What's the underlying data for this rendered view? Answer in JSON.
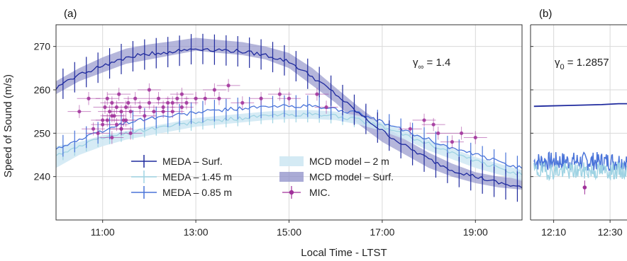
{
  "figure": {
    "xlabel": "Local Time - LTST",
    "ylabel": "Speed of Sound (m/s)"
  },
  "colors": {
    "meda_surf": "#1f2a9e",
    "meda_145": "#9fd3e3",
    "meda_085": "#4a74d9",
    "mcd_2m": "#cfe8f3",
    "mcd_surf": "#8e8fc8",
    "mic": "#a0309a"
  },
  "legend": [
    {
      "key": "meda_surf",
      "label": "MEDA – Surf.",
      "kind": "errline"
    },
    {
      "key": "meda_145",
      "label": "MEDA – 1.45 m",
      "kind": "errline"
    },
    {
      "key": "meda_085",
      "label": "MEDA – 0.85 m",
      "kind": "errline"
    },
    {
      "key": "mcd_2m",
      "label": "MCD model – 2 m",
      "kind": "band"
    },
    {
      "key": "mcd_surf",
      "label": "MCD model – Surf.",
      "kind": "band"
    },
    {
      "key": "mic",
      "label": "MIC.",
      "kind": "point"
    }
  ],
  "chart_data": [
    {
      "panel": "(a)",
      "type": "line",
      "xlim": [
        10.0,
        20.0
      ],
      "ylim": [
        230,
        275
      ],
      "xticks": [
        11,
        13,
        15,
        17,
        19
      ],
      "xtick_labels": [
        "11:00",
        "13:00",
        "15:00",
        "17:00",
        "19:00"
      ],
      "yticks": [
        240,
        250,
        260,
        270
      ],
      "ytick_labels": [
        "240",
        "250",
        "260",
        "270"
      ],
      "grid": true,
      "legend_position": "lower-center",
      "annotation": {
        "symbol": "γ",
        "subscript": "∞",
        "text": " = 1.4"
      },
      "series": [
        {
          "name": "MCD model – Surf.",
          "kind": "band",
          "x": [
            10.0,
            10.5,
            11.0,
            11.5,
            12.0,
            12.5,
            13.0,
            13.5,
            14.0,
            14.5,
            15.0,
            15.5,
            16.0,
            16.5,
            17.0,
            17.5,
            18.0,
            18.5,
            19.0,
            19.5,
            20.0
          ],
          "lower": [
            259,
            262,
            264,
            266,
            267,
            268,
            269,
            268.5,
            268,
            267,
            265,
            261,
            257,
            252,
            248,
            245,
            242,
            240,
            238.5,
            237.5,
            237
          ],
          "upper": [
            262,
            265,
            267.5,
            269.5,
            270.5,
            271.2,
            272,
            271.5,
            271,
            270,
            268.5,
            265,
            260.5,
            256,
            252,
            248.5,
            245.5,
            243,
            241,
            240,
            239.5
          ]
        },
        {
          "name": "MCD model – 2 m",
          "kind": "band",
          "x": [
            10.0,
            10.5,
            11.0,
            11.5,
            12.0,
            12.5,
            13.0,
            13.5,
            14.0,
            14.5,
            15.0,
            15.5,
            16.0,
            16.5,
            17.0,
            17.5,
            18.0,
            18.5,
            19.0,
            19.5,
            20.0
          ],
          "lower": [
            242,
            245,
            247,
            248.5,
            249.5,
            250.5,
            251.5,
            252,
            252.5,
            253,
            253.3,
            253.3,
            253,
            252,
            250.5,
            248.5,
            246,
            244,
            242,
            240.5,
            239
          ],
          "upper": [
            247,
            248,
            249.5,
            250.5,
            251.5,
            252.5,
            253.5,
            254,
            254.5,
            255,
            255.3,
            255.3,
            255,
            254,
            252.5,
            250.5,
            248.5,
            246.5,
            244.5,
            243,
            241.5
          ]
        },
        {
          "name": "MEDA – 1.45 m",
          "kind": "errline",
          "x": [
            10.0,
            10.5,
            11.0,
            11.5,
            12.0,
            12.5,
            13.0,
            13.5,
            14.0,
            14.5,
            15.0,
            15.5,
            16.0,
            16.5,
            17.0,
            17.5,
            18.0,
            18.5,
            19.0,
            19.5,
            20.0
          ],
          "y": [
            245,
            247,
            249,
            250,
            251,
            251.8,
            252.5,
            253,
            253.5,
            254,
            254.3,
            254.3,
            254,
            253,
            251.5,
            249.5,
            247.5,
            245.5,
            243.5,
            242,
            240.5
          ],
          "err": 1.8
        },
        {
          "name": "MEDA – 0.85 m",
          "kind": "errline",
          "x": [
            10.0,
            10.5,
            11.0,
            11.5,
            12.0,
            12.5,
            13.0,
            13.5,
            14.0,
            14.5,
            15.0,
            15.5,
            16.0,
            16.5,
            17.0,
            17.5,
            18.0,
            18.5,
            19.0,
            19.5,
            20.0
          ],
          "y": [
            246.5,
            248.5,
            250.5,
            252.5,
            253.5,
            254,
            254.8,
            255.3,
            255.8,
            256,
            256.3,
            256.2,
            255.5,
            254.5,
            252.5,
            250.5,
            248.5,
            246.5,
            245,
            243.5,
            242
          ],
          "err": 2.5
        },
        {
          "name": "MEDA – Surf.",
          "kind": "errline",
          "x": [
            10.0,
            10.5,
            11.0,
            11.5,
            12.0,
            12.5,
            13.0,
            13.5,
            14.0,
            14.5,
            15.0,
            15.5,
            16.0,
            16.5,
            17.0,
            17.5,
            18.0,
            18.5,
            19.0,
            19.5,
            20.0
          ],
          "y": [
            260.5,
            263.5,
            265.5,
            267.5,
            268.3,
            268.8,
            269.5,
            269.2,
            268.8,
            268,
            266.5,
            263,
            259,
            254.5,
            250.5,
            247,
            244,
            241.5,
            240,
            238.5,
            237.5
          ],
          "err": 3.5
        },
        {
          "name": "MIC.",
          "kind": "scatter",
          "x": [
            10.5,
            10.7,
            10.8,
            10.9,
            11.0,
            11.05,
            11.1,
            11.15,
            11.2,
            11.25,
            11.3,
            11.35,
            11.4,
            11.45,
            11.5,
            11.55,
            11.6,
            11.7,
            11.8,
            11.9,
            12.0,
            12.1,
            12.2,
            12.3,
            12.4,
            12.5,
            12.6,
            12.7,
            12.8,
            13.0,
            11.0,
            11.1,
            11.2,
            11.3,
            11.4,
            11.5,
            12.3,
            12.5,
            12.7,
            11.6,
            11.2,
            11.4,
            12.0,
            13.5,
            13.7,
            14.0,
            14.4,
            14.8,
            15.0,
            15.6,
            15.8,
            13.2,
            13.4,
            17.6,
            17.9,
            18.1,
            18.2,
            18.5,
            18.7,
            19.0
          ],
          "y": [
            255,
            258,
            251,
            250,
            253,
            256,
            258,
            255,
            257,
            254,
            256,
            259,
            255,
            253,
            256,
            257,
            255,
            258,
            256,
            254,
            257,
            255,
            258,
            256,
            257,
            255,
            258,
            256,
            257,
            258,
            252,
            253,
            254,
            252,
            251,
            253,
            255,
            257,
            259,
            250,
            249,
            251,
            260,
            258,
            261,
            257,
            258,
            259,
            258,
            259,
            256,
            258,
            260,
            251,
            253,
            252,
            250,
            248,
            250,
            249
          ],
          "xerr": 0.25,
          "yerr": 1.5
        }
      ]
    },
    {
      "panel": "(b)",
      "type": "line",
      "xlim": [
        12.03,
        12.6
      ],
      "ylim": [
        230,
        275
      ],
      "xticks": [
        12.1667,
        12.5
      ],
      "xtick_labels": [
        "12:10",
        "12:30"
      ],
      "yticks": [
        240,
        250,
        260,
        270
      ],
      "grid": true,
      "annotation": {
        "symbol": "γ",
        "subscript": "0",
        "text": " = 1.2857"
      },
      "series": [
        {
          "name": "MEDA – Surf.",
          "kind": "line",
          "x": [
            12.05,
            12.15,
            12.25,
            12.35,
            12.45,
            12.55,
            12.6
          ],
          "y": [
            256.2,
            256.3,
            256.4,
            256.5,
            256.6,
            256.8,
            256.8
          ]
        },
        {
          "name": "MEDA – 0.85 m",
          "kind": "noisy",
          "mean": 243.5,
          "amp": 2.2,
          "seed": 7
        },
        {
          "name": "MEDA – 1.45 m",
          "kind": "noisy",
          "mean": 241.3,
          "amp": 2.0,
          "seed": 19
        },
        {
          "name": "MIC.",
          "kind": "scatter",
          "x": [
            12.35
          ],
          "y": [
            237.5
          ],
          "xerr": 0.0,
          "yerr": 1.6
        }
      ]
    }
  ],
  "labels": {
    "panel_a": "(a)",
    "panel_b": "(b)"
  }
}
